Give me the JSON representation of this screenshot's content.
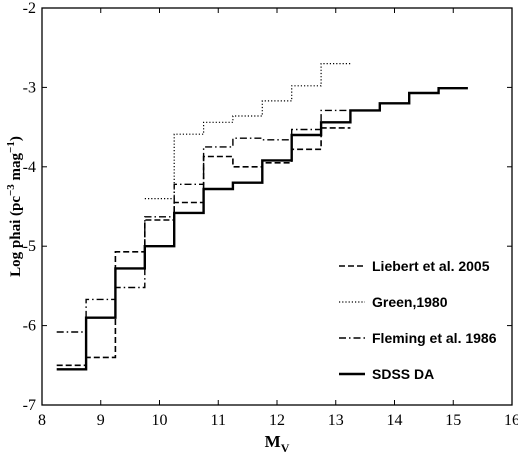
{
  "chart_data": {
    "type": "line",
    "subtype": "step",
    "xlabel": "M",
    "xlabel_sub": "V",
    "ylabel": "Log phai  (pc",
    "ylabel_sup": "−3",
    "ylabel_mid": " mag",
    "ylabel_sup2": "−1",
    "ylabel_end": ")",
    "xlim": [
      8,
      16
    ],
    "ylim": [
      -7,
      -2
    ],
    "xticks": [
      "8",
      "9",
      "10",
      "11",
      "12",
      "13",
      "14",
      "15",
      "16"
    ],
    "yticks": [
      "-2",
      "-3",
      "-4",
      "-5",
      "-6",
      "-7"
    ],
    "grid": false,
    "legend_position": "lower-right",
    "series": [
      {
        "name": "Liebert et al. 2005",
        "style": "dashed",
        "bins": [
          [
            8.25,
            8.75,
            -6.5
          ],
          [
            8.75,
            9.25,
            -6.4
          ],
          [
            9.25,
            9.75,
            -5.07
          ],
          [
            9.75,
            10.25,
            -4.67
          ],
          [
            10.25,
            10.75,
            -4.45
          ],
          [
            10.75,
            11.25,
            -3.87
          ],
          [
            11.25,
            11.75,
            -4.0
          ],
          [
            11.75,
            12.25,
            -3.95
          ],
          [
            12.25,
            12.75,
            -3.78
          ],
          [
            12.75,
            13.25,
            -3.51
          ]
        ]
      },
      {
        "name": "Green,1980",
        "style": "dotted",
        "bins": [
          [
            9.75,
            10.25,
            -4.4
          ],
          [
            10.25,
            10.75,
            -3.59
          ],
          [
            10.75,
            11.25,
            -3.44
          ],
          [
            11.25,
            11.75,
            -3.36
          ],
          [
            11.75,
            12.25,
            -3.17
          ],
          [
            12.25,
            12.75,
            -2.98
          ],
          [
            12.75,
            13.25,
            -2.7
          ]
        ]
      },
      {
        "name": "Fleming et al. 1986",
        "style": "dashdot",
        "bins": [
          [
            8.25,
            8.75,
            -6.08
          ],
          [
            8.75,
            9.25,
            -5.67
          ],
          [
            9.25,
            9.75,
            -5.52
          ],
          [
            9.75,
            10.25,
            -4.63
          ],
          [
            10.25,
            10.75,
            -4.22
          ],
          [
            10.75,
            11.25,
            -3.75
          ],
          [
            11.25,
            11.75,
            -3.64
          ],
          [
            11.75,
            12.25,
            -3.66
          ],
          [
            12.25,
            12.75,
            -3.53
          ],
          [
            12.75,
            13.25,
            -3.29
          ]
        ]
      },
      {
        "name": "SDSS DA",
        "style": "solid",
        "bins": [
          [
            8.25,
            8.75,
            -6.55
          ],
          [
            8.75,
            9.25,
            -5.9
          ],
          [
            9.25,
            9.75,
            -5.28
          ],
          [
            9.75,
            10.25,
            -5.0
          ],
          [
            10.25,
            10.75,
            -4.58
          ],
          [
            10.75,
            11.25,
            -4.28
          ],
          [
            11.25,
            11.75,
            -4.2
          ],
          [
            11.75,
            12.25,
            -3.92
          ],
          [
            12.25,
            12.75,
            -3.6
          ],
          [
            12.75,
            13.25,
            -3.44
          ],
          [
            13.25,
            13.75,
            -3.29
          ],
          [
            13.75,
            14.25,
            -3.2
          ],
          [
            14.25,
            14.75,
            -3.07
          ],
          [
            14.75,
            15.25,
            -3.01
          ]
        ]
      }
    ]
  }
}
